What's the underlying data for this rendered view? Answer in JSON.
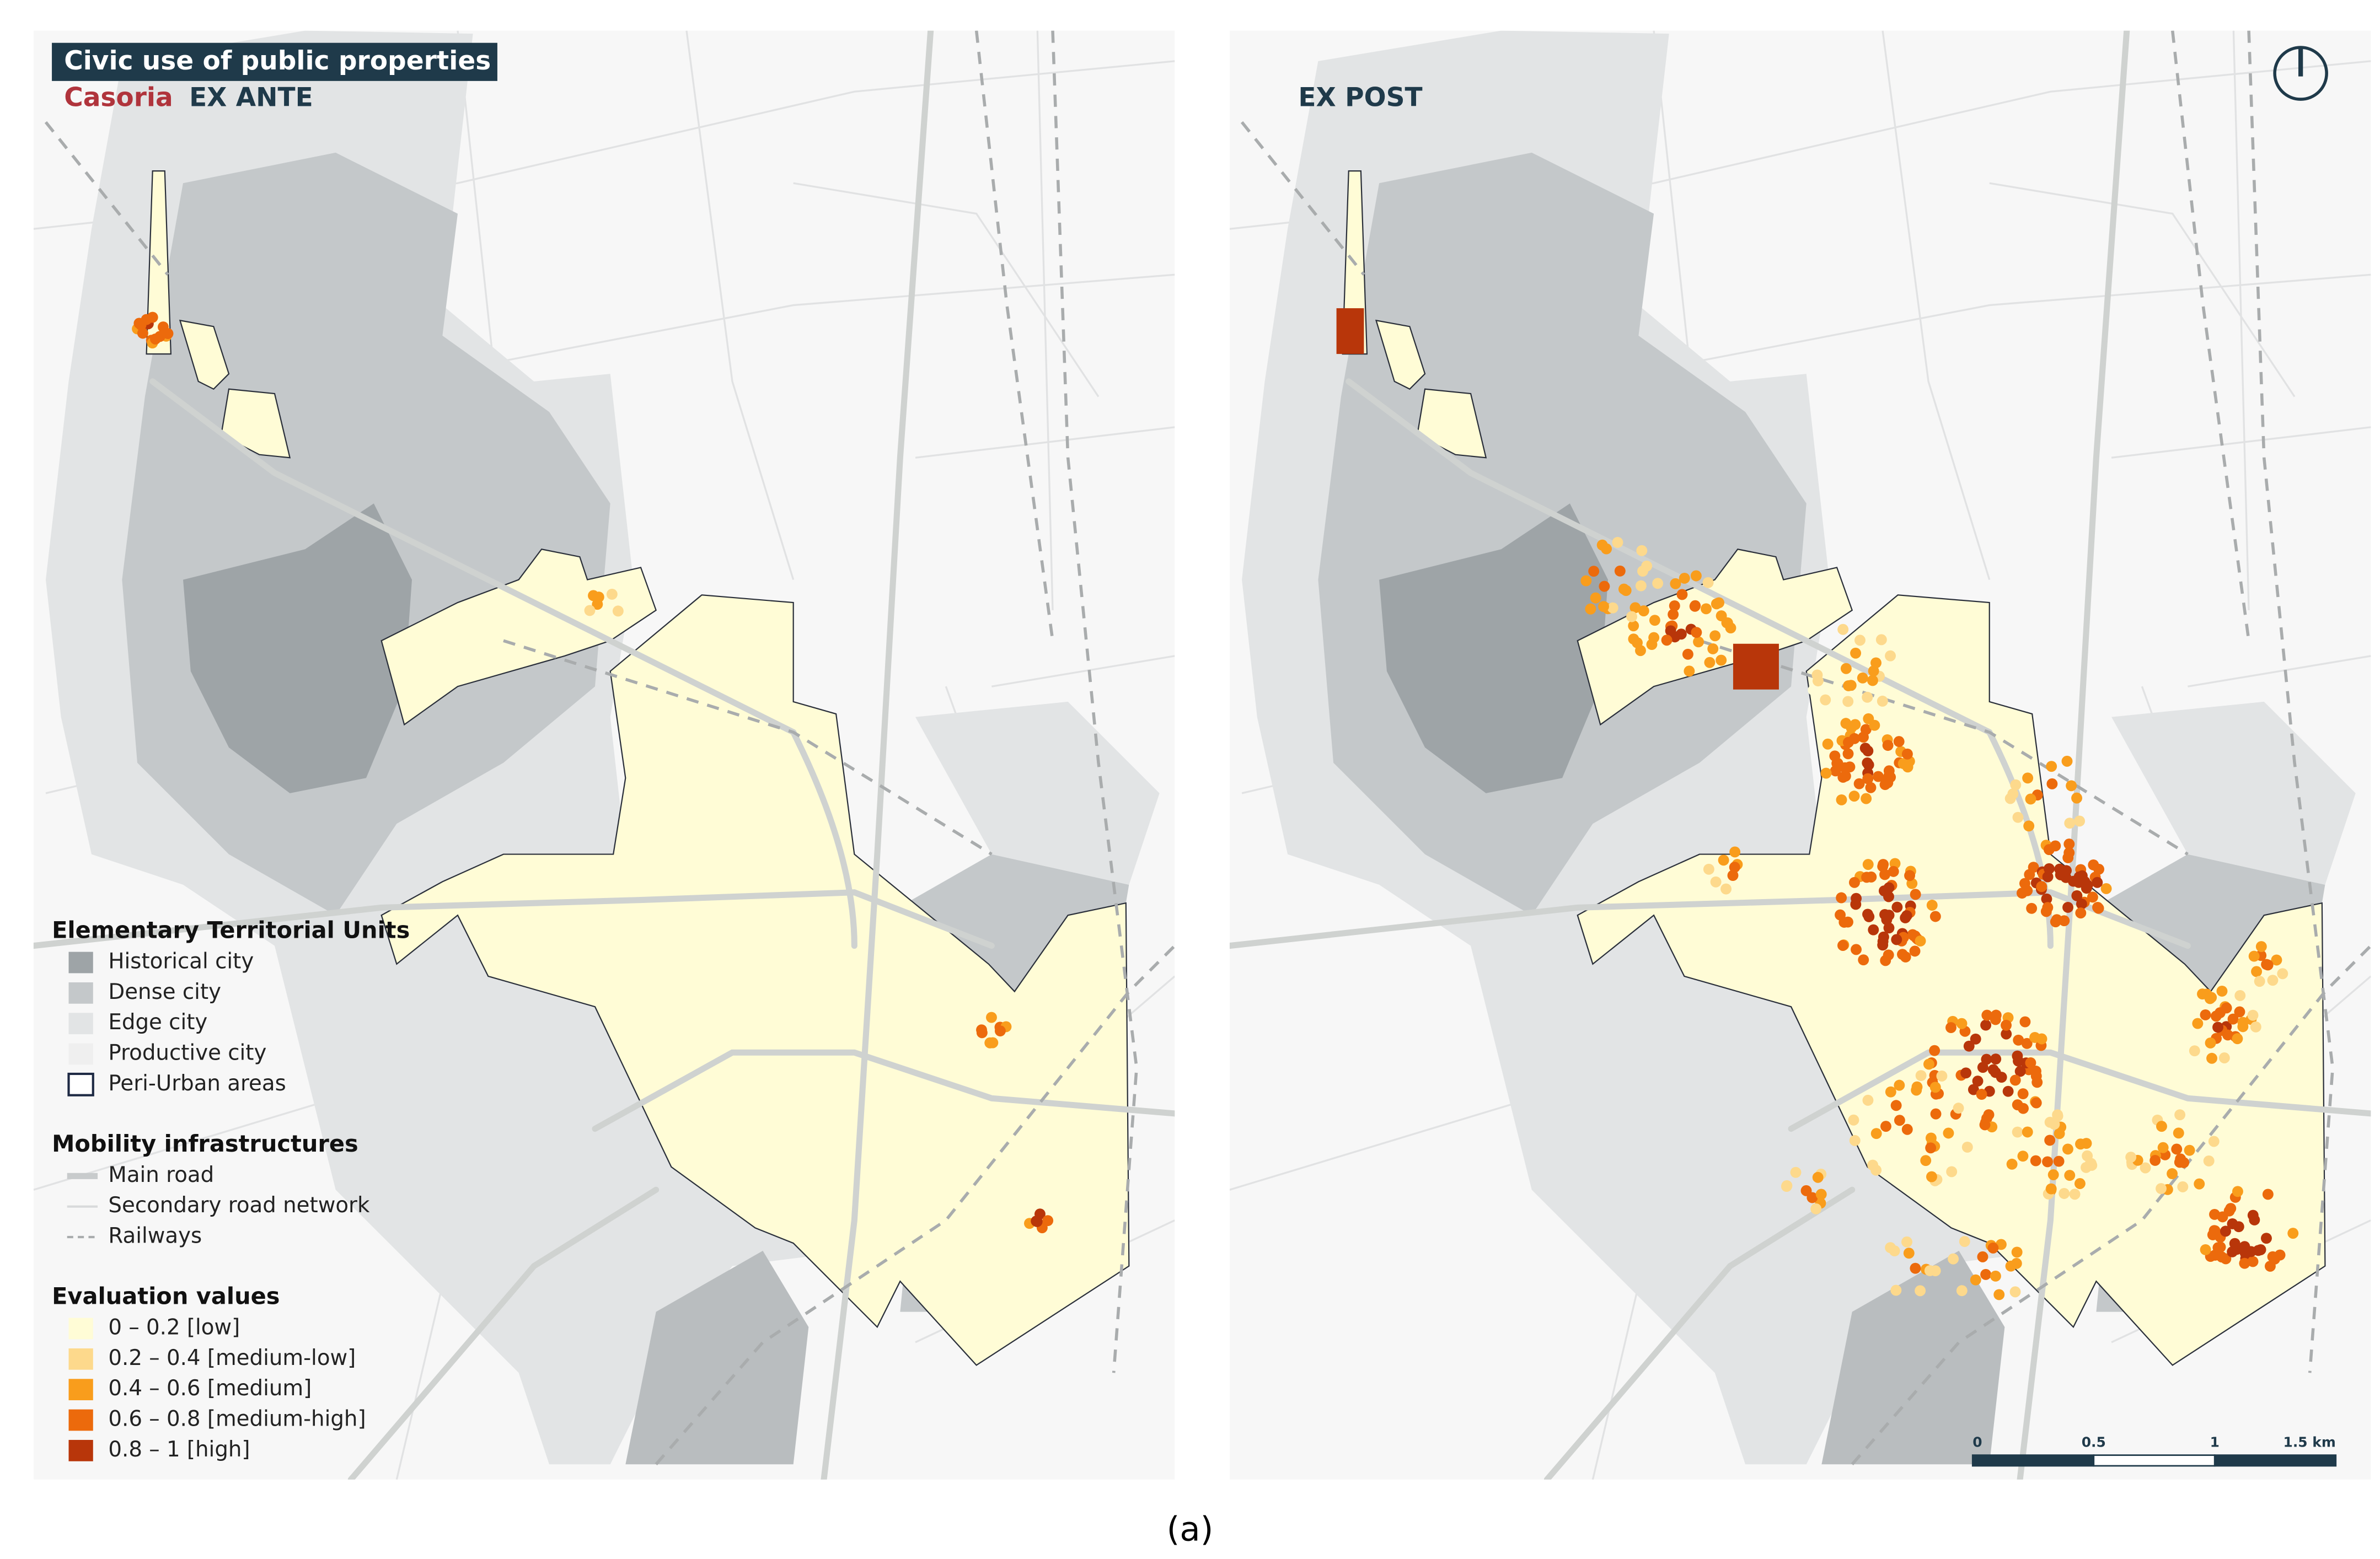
{
  "header": {
    "title": "Civic use of public properties",
    "city": "Casoria",
    "left_panel": "EX ANTE",
    "right_panel": "EX POST"
  },
  "legend": {
    "sections": [
      {
        "title": "Elementary Territorial Units",
        "items": [
          {
            "label": "Historical city",
            "color": "#9ea4a7"
          },
          {
            "label": "Dense city",
            "color": "#c4c8ca"
          },
          {
            "label": "Edge city",
            "color": "#e2e4e5"
          },
          {
            "label": "Productive city",
            "color": "#efefef"
          },
          {
            "label": "Peri-Urban areas",
            "color": "#1e2a44"
          }
        ]
      },
      {
        "title": "Mobility infrastructures",
        "items": [
          {
            "label": "Main road",
            "color": "#c8cbcc"
          },
          {
            "label": "Secondary road network",
            "color": "#d8dadb"
          },
          {
            "label": "Railways",
            "color": "#a9acad"
          }
        ]
      },
      {
        "title": "Evaluation values",
        "items": [
          {
            "label": "0 – 0.2 [low]",
            "color": "#fffcd6"
          },
          {
            "label": "0.2 – 0.4 [medium-low]",
            "color": "#fdd98c"
          },
          {
            "label": "0.4 – 0.6 [medium]",
            "color": "#f99d1c"
          },
          {
            "label": "0.6 – 0.8 [medium-high]",
            "color": "#ec6a0c"
          },
          {
            "label": "0.8 – 1 [high]",
            "color": "#b8360a"
          }
        ]
      }
    ]
  },
  "scale_bar": {
    "labels": [
      "0",
      "0.5",
      "1",
      "1.5 km"
    ]
  },
  "caption": "(a)"
}
